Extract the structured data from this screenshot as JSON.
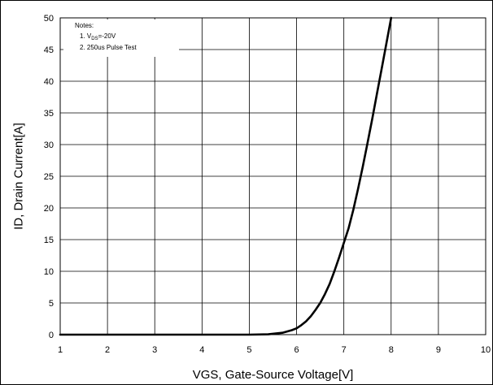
{
  "chart_data": {
    "type": "line",
    "xlabel": "VGS, Gate-Source Voltage[V]",
    "ylabel": "ID, Drain Current[A]",
    "xlim": [
      1,
      10
    ],
    "ylim": [
      0,
      50
    ],
    "x_ticks": [
      1,
      2,
      3,
      4,
      5,
      6,
      7,
      8,
      9,
      10
    ],
    "y_ticks": [
      0,
      5,
      10,
      15,
      20,
      25,
      30,
      35,
      40,
      45,
      50
    ],
    "grid": true,
    "notes": {
      "title": "Notes:",
      "line1_prefix": "1. V",
      "line1_sub": "DS",
      "line1_suffix": "=-20V",
      "line2": "2. 250us Pulse Test"
    },
    "series": [
      {
        "color": "#000000",
        "x": [
          1.0,
          4.0,
          5.0,
          5.4,
          5.7,
          5.9,
          6.0,
          6.1,
          6.2,
          6.3,
          6.4,
          6.5,
          6.6,
          6.7,
          6.8,
          6.9,
          7.0,
          7.1,
          7.2,
          7.3,
          7.4,
          7.5,
          7.6,
          7.7,
          7.8,
          7.9,
          8.0
        ],
        "y": [
          0.0,
          0.0,
          0.0,
          0.05,
          0.3,
          0.7,
          1.0,
          1.5,
          2.1,
          2.9,
          3.9,
          5.0,
          6.4,
          8.0,
          10.0,
          12.2,
          14.5,
          16.8,
          19.7,
          23.0,
          26.5,
          30.2,
          34.0,
          38.0,
          42.0,
          46.0,
          50.0
        ]
      }
    ]
  }
}
